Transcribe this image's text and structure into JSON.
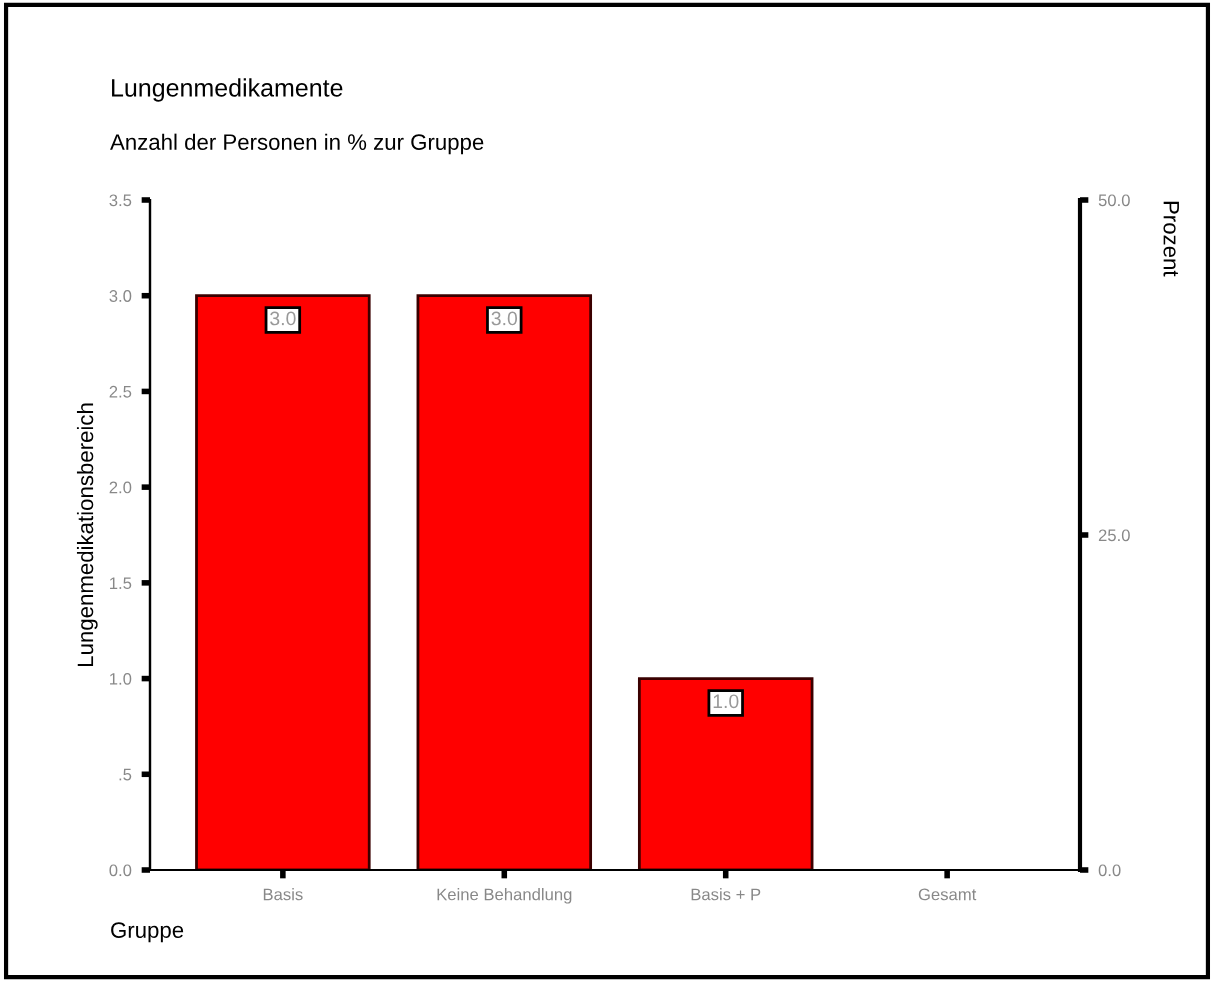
{
  "chart_data": {
    "type": "bar",
    "title": "Lungenmedikamente",
    "subtitle": "Anzahl der Personen in % zur Gruppe",
    "xlabel": "Gruppe",
    "ylabel": "Lungenmedikationsbereich",
    "y2label": "Prozent",
    "categories": [
      "Basis",
      "Keine Behandlung",
      "Basis + P",
      "Gesamt"
    ],
    "values": [
      3.0,
      3.0,
      1.0,
      null
    ],
    "value_labels": [
      "3.0",
      "3.0",
      "1.0",
      null
    ],
    "color": "#ff0000",
    "ylim": [
      0,
      3.5
    ],
    "yticks": [
      {
        "value": 0,
        "label": "0.0"
      },
      {
        "value": 0.5,
        "label": ".5"
      },
      {
        "value": 1.0,
        "label": "1.0"
      },
      {
        "value": 1.5,
        "label": "1.5"
      },
      {
        "value": 2.0,
        "label": "2.0"
      },
      {
        "value": 2.5,
        "label": "2.5"
      },
      {
        "value": 3.0,
        "label": "3.0"
      },
      {
        "value": 3.5,
        "label": "3.5"
      }
    ],
    "y2lim": [
      0,
      50
    ],
    "y2ticks": [
      {
        "value": 0,
        "label": "0.0"
      },
      {
        "value": 25,
        "label": "25.0"
      },
      {
        "value": 50,
        "label": "50.0"
      }
    ],
    "grid": false,
    "legend": false
  }
}
